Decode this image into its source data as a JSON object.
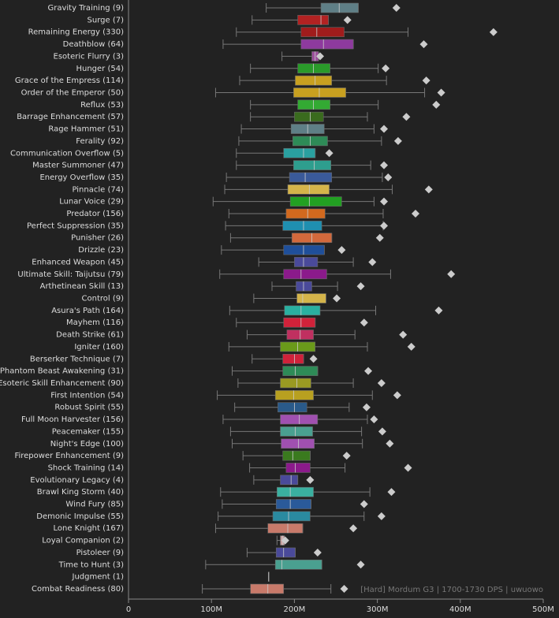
{
  "chart_data": {
    "type": "box",
    "annotation": "[Hard] Mordum G3 | 1700-1730 DPS | uwuowo",
    "categories": [
      "Gravity Training (9)",
      "Surge (7)",
      "Remaining Energy (330)",
      "Deathblow (64)",
      "Esoteric Flurry (3)",
      "Hunger (54)",
      "Grace of the Empress (114)",
      "Order of the Emperor (50)",
      "Reflux (53)",
      "Barrage Enhancement (57)",
      "Rage Hammer (51)",
      "Ferality (92)",
      "Communication Overflow (5)",
      "Master Summoner (47)",
      "Energy Overflow (35)",
      "Pinnacle (74)",
      "Lunar Voice (29)",
      "Predator (156)",
      "Perfect Suppression (35)",
      "Punisher (26)",
      "Drizzle (23)",
      "Enhanced Weapon (45)",
      "Ultimate Skill: Taijutsu (79)",
      "Arthetinean Skill (13)",
      "Control (9)",
      "Asura's Path (164)",
      "Mayhem (116)",
      "Death Strike (61)",
      "Igniter (160)",
      "Berserker Technique (7)",
      "Phantom Beast Awakening (31)",
      "Esoteric Skill Enhancement (90)",
      "First Intention (54)",
      "Robust Spirit (55)",
      "Full Moon Harvester (156)",
      "Peacemaker (155)",
      "Night's Edge (100)",
      "Firepower Enhancement (9)",
      "Shock Training (14)",
      "Evolutionary Legacy (4)",
      "Brawl King Storm (40)",
      "Wind Fury (85)",
      "Demonic Impulse (55)",
      "Lone Knight (167)",
      "Loyal Companion (2)",
      "Pistoleer (9)",
      "Time to Hunt (3)",
      "Judgment (1)",
      "Combat Readiness (80)"
    ],
    "whisker_low": [
      166,
      149,
      130,
      114,
      185,
      147,
      134,
      105,
      147,
      147,
      136,
      133,
      130,
      130,
      118,
      116,
      102,
      121,
      117,
      123,
      112,
      157,
      110,
      173,
      151,
      122,
      130,
      143,
      121,
      149,
      125,
      132,
      107,
      128,
      114,
      123,
      125,
      138,
      146,
      151,
      111,
      113,
      108,
      105,
      179,
      143,
      93,
      169,
      89
    ],
    "q1": [
      232,
      204,
      208,
      208,
      221,
      204,
      201,
      199,
      204,
      200,
      196,
      198,
      187,
      199,
      194,
      192,
      195,
      190,
      186,
      197,
      187,
      200,
      187,
      202,
      203,
      188,
      187,
      191,
      183,
      186,
      186,
      183,
      177,
      180,
      183,
      183,
      184,
      186,
      190,
      183,
      179,
      178,
      174,
      168,
      183,
      178,
      177,
      169,
      147
    ],
    "median": [
      254,
      232,
      227,
      235,
      225,
      223,
      225,
      230,
      223,
      219,
      216,
      219,
      211,
      224,
      213,
      218,
      218,
      216,
      211,
      221,
      211,
      211,
      208,
      211,
      210,
      208,
      208,
      207,
      204,
      200,
      201,
      203,
      199,
      200,
      206,
      201,
      205,
      198,
      201,
      196,
      195,
      195,
      193,
      192,
      186,
      187,
      185,
      169,
      168
    ],
    "q3": [
      277,
      241,
      260,
      271,
      229,
      243,
      245,
      262,
      243,
      235,
      236,
      240,
      225,
      244,
      245,
      242,
      257,
      237,
      233,
      245,
      236,
      228,
      239,
      221,
      238,
      231,
      225,
      223,
      225,
      211,
      228,
      220,
      223,
      215,
      228,
      222,
      224,
      219,
      219,
      204,
      223,
      220,
      219,
      210,
      188,
      201,
      233,
      169,
      187
    ],
    "whisker_high": [
      277,
      241,
      337,
      271,
      229,
      301,
      311,
      357,
      301,
      288,
      296,
      305,
      225,
      292,
      306,
      318,
      296,
      307,
      307,
      245,
      236,
      271,
      316,
      252,
      238,
      298,
      225,
      273,
      288,
      211,
      228,
      271,
      294,
      266,
      288,
      281,
      282,
      219,
      261,
      204,
      291,
      220,
      284,
      210,
      188,
      201,
      233,
      169,
      244
    ],
    "outliers": [
      323,
      264,
      440,
      356,
      231,
      310,
      359,
      377,
      371,
      335,
      308,
      325,
      242,
      308,
      313,
      362,
      308,
      346,
      308,
      303,
      257,
      294,
      389,
      280,
      251,
      374,
      284,
      331,
      341,
      223,
      289,
      305,
      324,
      287,
      296,
      306,
      315,
      263,
      337,
      219,
      317,
      284,
      305,
      271,
      189,
      228,
      280,
      null,
      260
    ],
    "colors": [
      "#5f7f86",
      "#b22222",
      "#a01c1c",
      "#8e3a9e",
      "#9b4f9b",
      "#2a9a2a",
      "#c8a020",
      "#c8a020",
      "#33aa33",
      "#3a6b1e",
      "#5f7f86",
      "#2e8b57",
      "#2aa0a0",
      "#2e9e8e",
      "#3a5a9a",
      "#d4b44a",
      "#22a022",
      "#d2691e",
      "#1f8fb0",
      "#d2693c",
      "#1f4f9a",
      "#4a4a9a",
      "#8b1a8b",
      "#4a4a9a",
      "#d4b44a",
      "#2ab0a0",
      "#d0223a",
      "#c03060",
      "#6a9a1a",
      "#d0223a",
      "#2e8b57",
      "#9a9a22",
      "#b8a020",
      "#2a5a8a",
      "#a050b0",
      "#4aa090",
      "#a050b0",
      "#3a7a1e",
      "#8b1a8b",
      "#4a4a9a",
      "#3ab0a0",
      "#2a5a9a",
      "#2a8aa0",
      "#c87a6a",
      "#c8a0a0",
      "#4a4a9a",
      "#4aa090",
      "#888888",
      "#c87a6a"
    ],
    "xlim": [
      0,
      500
    ],
    "xticks": [
      0,
      {
        "value": 100,
        "label": "100M"
      },
      {
        "value": 200,
        "label": "200M"
      },
      {
        "value": 300,
        "label": "300M"
      },
      {
        "value": 400,
        "label": "400M"
      },
      {
        "value": 500,
        "label": "500M"
      }
    ]
  }
}
